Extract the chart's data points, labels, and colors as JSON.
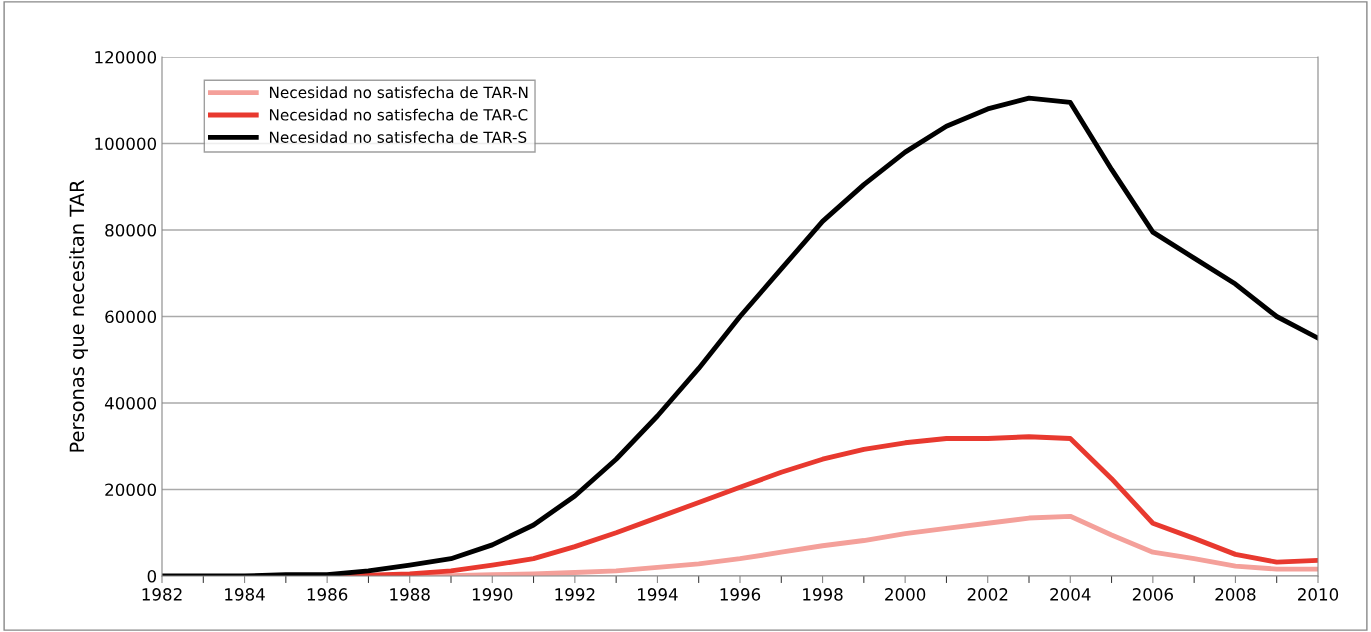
{
  "chart_data": {
    "type": "line",
    "ylabel": "Personas que necesitan TAR",
    "x": [
      1982,
      1983,
      1984,
      1985,
      1986,
      1987,
      1988,
      1989,
      1990,
      1991,
      1992,
      1993,
      1994,
      1995,
      1996,
      1997,
      1998,
      1999,
      2000,
      2001,
      2002,
      2003,
      2004,
      2005,
      2006,
      2007,
      2008,
      2009,
      2010
    ],
    "series": [
      {
        "name": "Necesidad no satisfecha de TAR-N",
        "color": "#f4a09a",
        "values": [
          null,
          null,
          null,
          null,
          0,
          0,
          0,
          100,
          300,
          500,
          800,
          1200,
          2000,
          2800,
          4000,
          5500,
          7000,
          8200,
          9800,
          11000,
          12200,
          13400,
          13800,
          9500,
          5500,
          4000,
          2300,
          1600,
          1600
        ]
      },
      {
        "name": "Necesidad no satisfecha de TAR-C",
        "color": "#e8392f",
        "values": [
          null,
          null,
          null,
          null,
          0,
          200,
          500,
          1200,
          2500,
          4000,
          6800,
          10000,
          13500,
          17000,
          20500,
          24000,
          27000,
          29300,
          30800,
          31800,
          31800,
          32200,
          31800,
          22500,
          12200,
          8700,
          5000,
          3200,
          3600
        ]
      },
      {
        "name": "Necesidad no satisfecha de TAR-S",
        "color": "#000000",
        "values": [
          0,
          0,
          0,
          300,
          300,
          1200,
          2500,
          4000,
          7200,
          11800,
          18500,
          27000,
          37000,
          48000,
          60000,
          71000,
          82000,
          90500,
          98000,
          104000,
          108000,
          110500,
          109500,
          94000,
          79500,
          73500,
          67500,
          60000,
          55000
        ]
      }
    ],
    "xlim": [
      1982,
      2010
    ],
    "xticks": [
      1982,
      1984,
      1986,
      1988,
      1990,
      1992,
      1994,
      1996,
      1998,
      2000,
      2002,
      2004,
      2006,
      2008,
      2010
    ],
    "ylim": [
      0,
      120000
    ],
    "yticks": [
      0,
      20000,
      40000,
      60000,
      80000,
      100000,
      120000
    ],
    "grid": "y",
    "legend": "top left",
    "marker": "none",
    "line_style": "solid"
  }
}
